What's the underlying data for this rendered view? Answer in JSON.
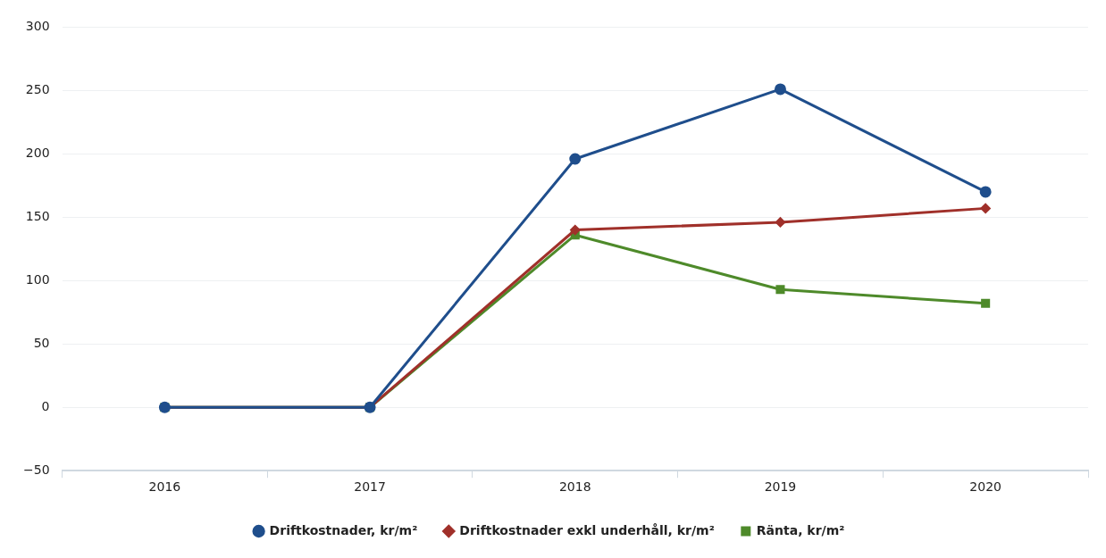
{
  "chart_data": {
    "type": "line",
    "categories": [
      "2016",
      "2017",
      "2018",
      "2019",
      "2020"
    ],
    "series": [
      {
        "name": "Driftkostnader, kr/m²",
        "color": "#1f4e8c",
        "marker": "circle",
        "values": [
          0,
          0,
          196,
          251,
          170
        ]
      },
      {
        "name": "Driftkostnader exkl underhåll, kr/m²",
        "color": "#a0302a",
        "marker": "diamond",
        "values": [
          0,
          0,
          140,
          146,
          157
        ]
      },
      {
        "name": "Ränta, kr/m²",
        "color": "#4e8a2a",
        "marker": "square",
        "values": [
          0,
          0,
          136,
          93,
          82
        ]
      }
    ],
    "ylim": [
      -50,
      300
    ],
    "yticks": [
      -50,
      0,
      50,
      100,
      150,
      200,
      250,
      300
    ],
    "grid": "y",
    "legend": "bottom",
    "line_style": "solid"
  }
}
